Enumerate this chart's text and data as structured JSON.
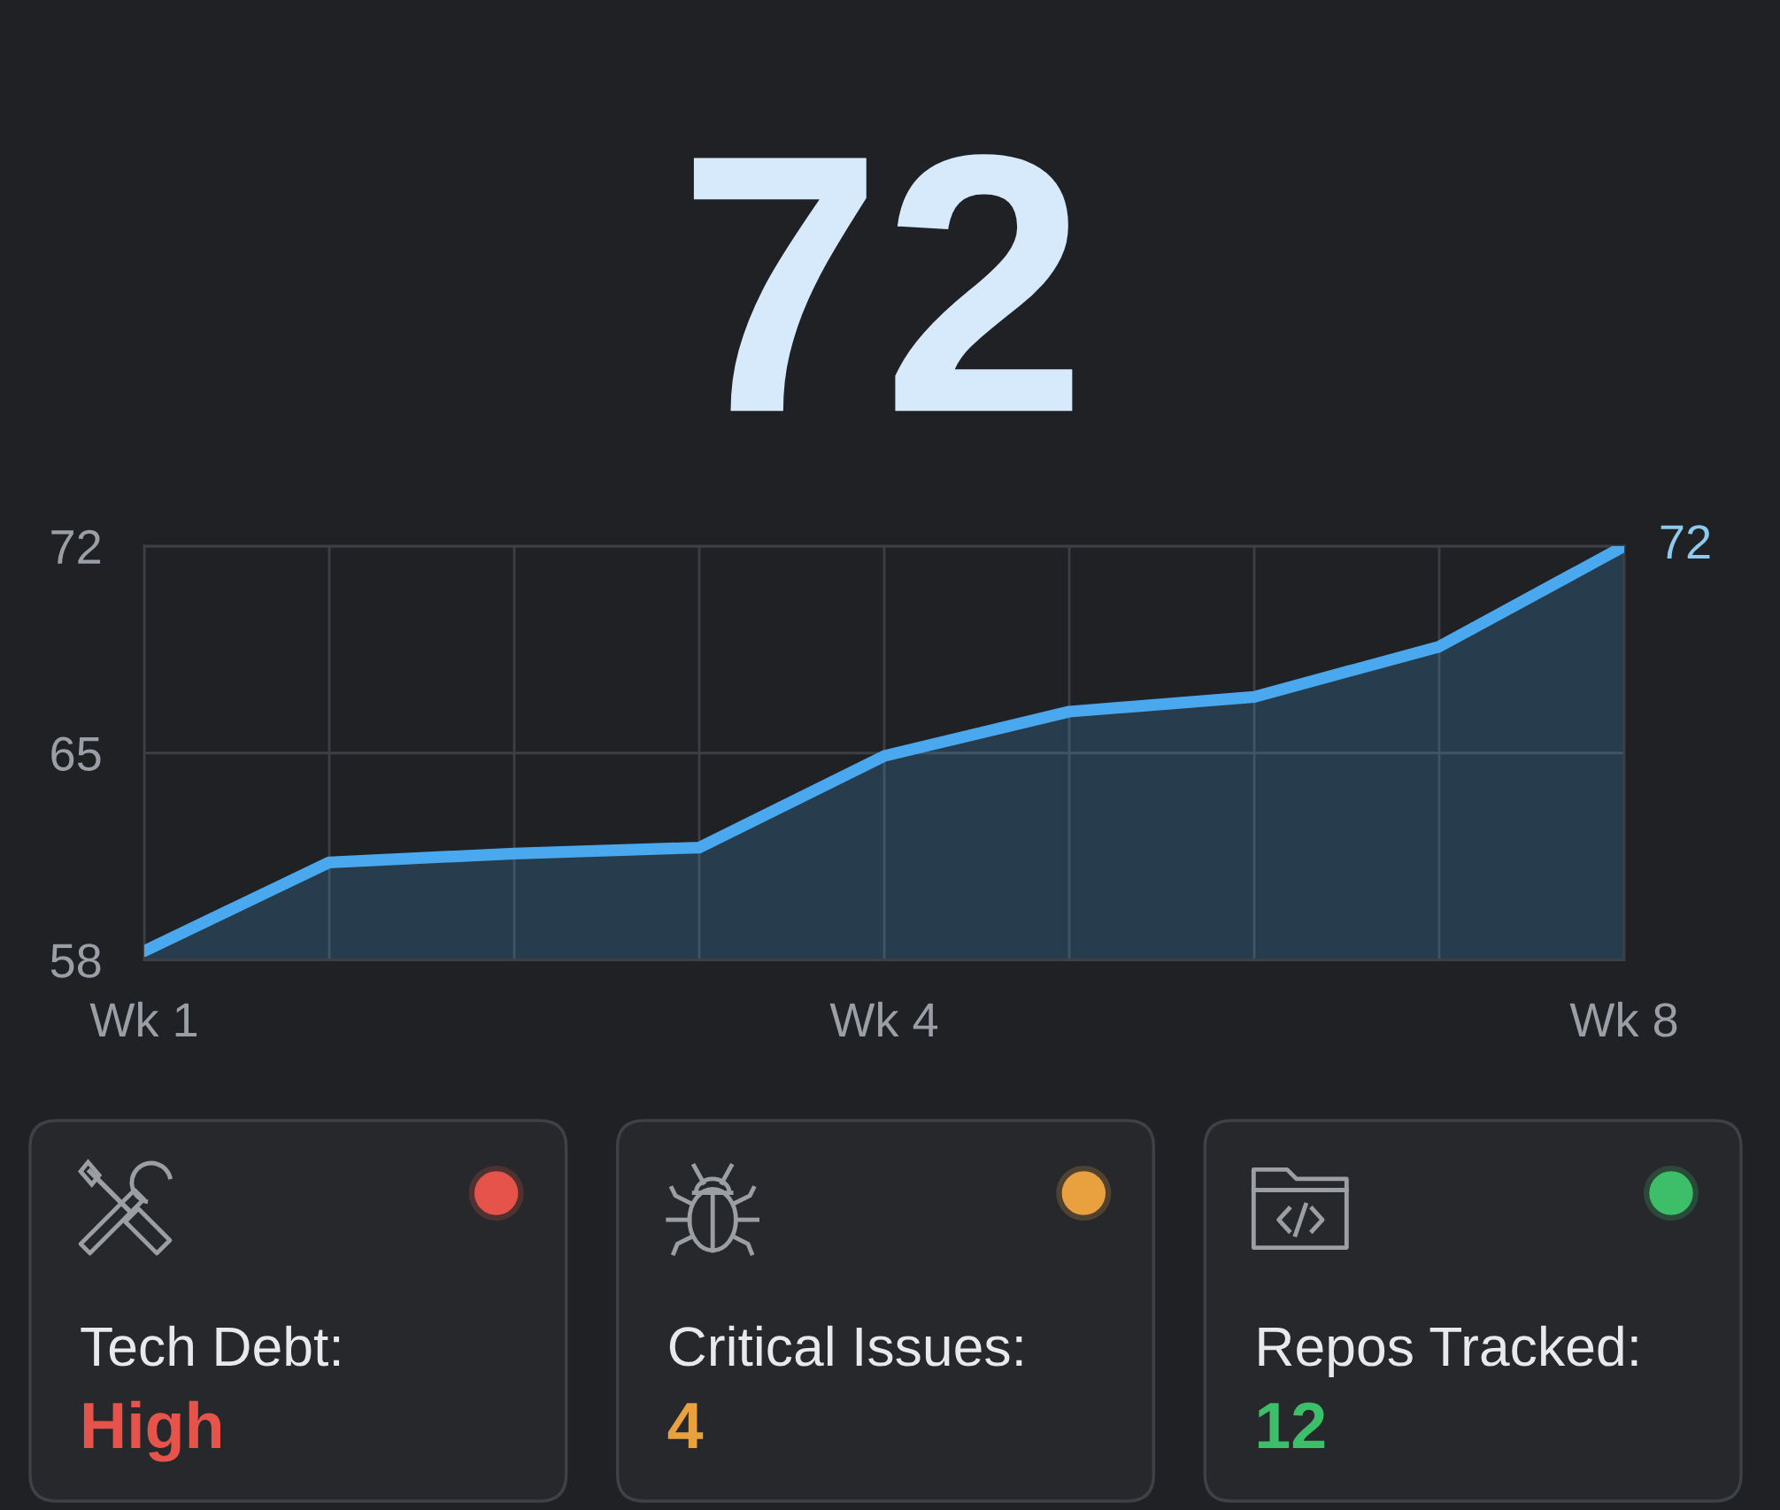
{
  "chart_data": [
    {
      "type": "area",
      "title": "72",
      "categories": [
        "Wk 1",
        null,
        null,
        null,
        "Wk 4",
        null,
        null,
        null,
        "Wk 8"
      ],
      "series": [
        {
          "color": "#4aa8ee",
          "values": [
            58.3,
            61.3,
            61.6,
            61.8,
            64.9,
            66.4,
            66.9,
            68.6,
            72
          ],
          "value_labels": [
            null,
            null,
            null,
            null,
            null,
            null,
            null,
            null,
            "72"
          ]
        }
      ],
      "ylim": [
        58,
        72
      ],
      "yticks": [
        58,
        65,
        72
      ],
      "grid": true
    },
    {
      "type": "other",
      "annotations": [
        "Tech Debt:",
        "High",
        "Critical Issues:",
        "4",
        "Repos Tracked:",
        "12"
      ],
      "colors": [
        "#e5534b",
        "#e8a13e",
        "#3dbf6a"
      ]
    }
  ]
}
